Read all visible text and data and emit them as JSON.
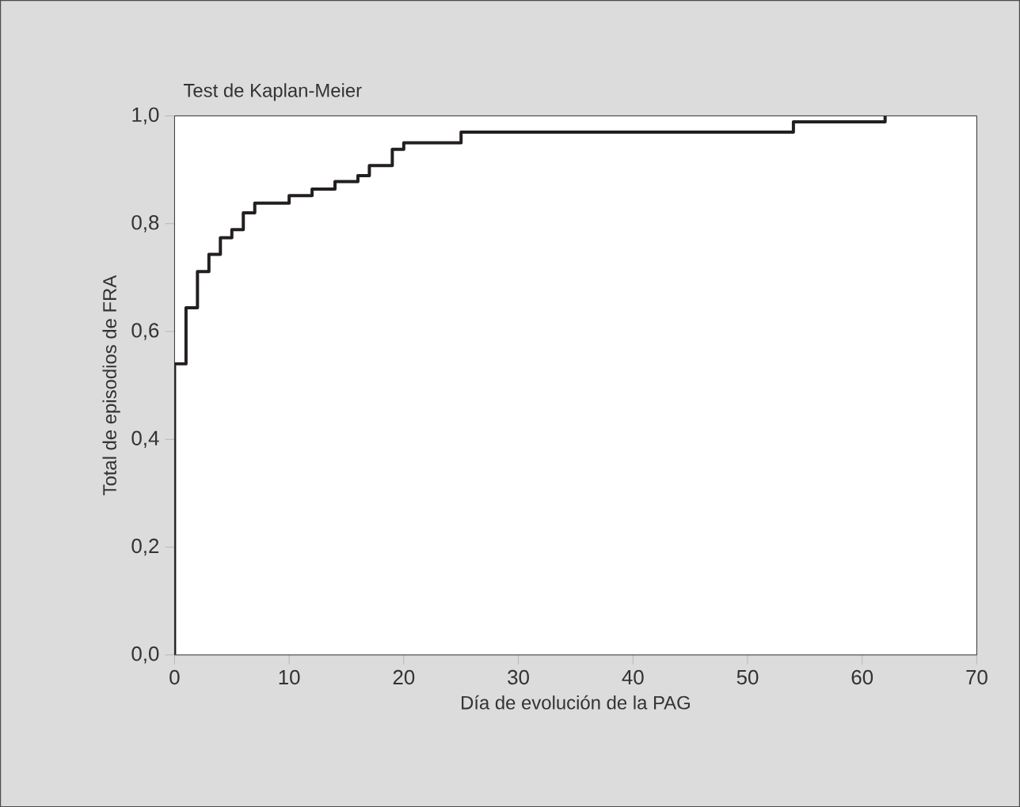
{
  "chart_data": {
    "type": "step",
    "title": "Test de Kaplan-Meier",
    "xlabel": "Día de evolución de la PAG",
    "ylabel": "Total de episodios de FRA",
    "x": [
      0,
      0,
      1,
      2,
      3,
      4,
      5,
      6,
      7,
      10,
      12,
      14,
      16,
      17,
      19,
      20,
      25,
      54,
      62
    ],
    "values": [
      0,
      0.54,
      0.644,
      0.711,
      0.743,
      0.774,
      0.789,
      0.82,
      0.838,
      0.852,
      0.864,
      0.878,
      0.889,
      0.908,
      0.938,
      0.95,
      0.97,
      0.989,
      1.0
    ],
    "color": "#231f20",
    "xlim": [
      0,
      70
    ],
    "ylim": [
      0,
      1
    ],
    "xticks": [
      0,
      10,
      20,
      30,
      40,
      50,
      60,
      70
    ],
    "yticks": [
      {
        "value": 0,
        "label": "0,0"
      },
      {
        "value": 0.2,
        "label": "0,2"
      },
      {
        "value": 0.4,
        "label": "0,4"
      },
      {
        "value": 0.6,
        "label": "0,6"
      },
      {
        "value": 0.8,
        "label": "0,8"
      },
      {
        "value": 1.0,
        "label": "1,0"
      }
    ],
    "grid": false,
    "marker": "none",
    "line_style": "solid"
  }
}
